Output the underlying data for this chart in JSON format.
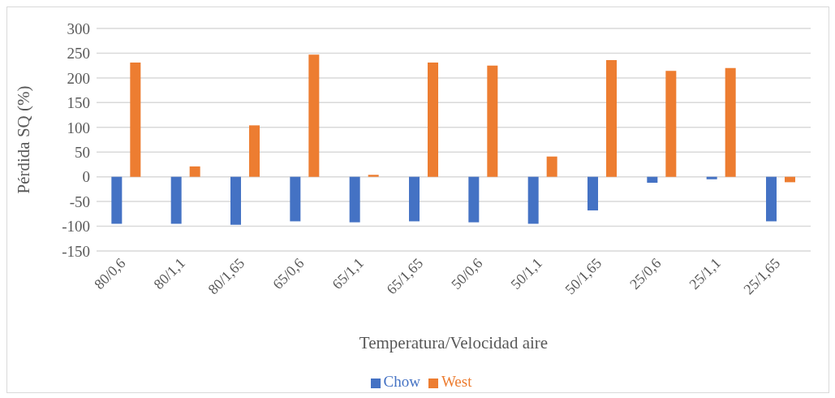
{
  "chart_data": {
    "type": "bar",
    "xlabel": "Temperatura/Velocidad aire",
    "ylabel": "Pérdida SQ (%)",
    "categories": [
      "80/0,6",
      "80/1,1",
      "80/1,65",
      "65/0,6",
      "65/1,1",
      "65/1,65",
      "50/0,6",
      "50/1,1",
      "50/1,65",
      "25/0,6",
      "25/1,1",
      "25/1,65"
    ],
    "series": [
      {
        "name": "Chow",
        "color": "#4472c4",
        "values": [
          -95,
          -95,
          -97,
          -90,
          -92,
          -90,
          -92,
          -95,
          -68,
          -12,
          -5,
          -90
        ]
      },
      {
        "name": "West",
        "color": "#ed7d31",
        "values": [
          231,
          21,
          104,
          247,
          4,
          231,
          225,
          41,
          236,
          214,
          220,
          -11
        ]
      }
    ],
    "ylim": [
      -150,
      300
    ],
    "yticks": [
      -150,
      -100,
      -50,
      0,
      50,
      100,
      150,
      200,
      250,
      300
    ],
    "grid": "y",
    "legend": "bottom"
  }
}
